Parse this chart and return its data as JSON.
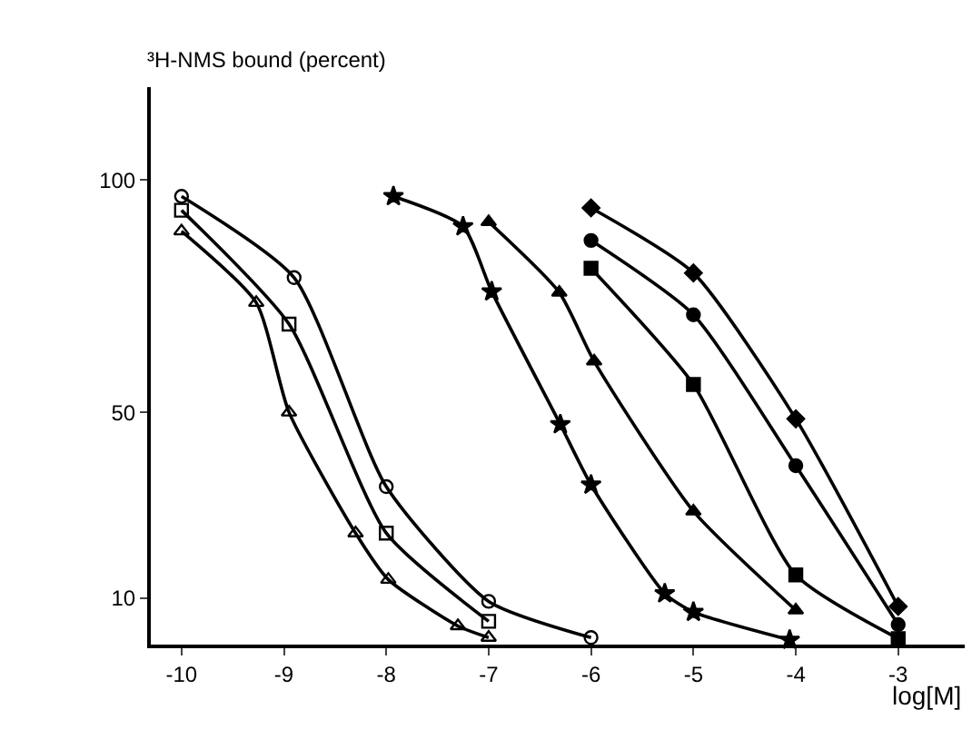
{
  "chart_data": {
    "type": "line",
    "ylabel": "³H-NMS bound (percent)",
    "xlabel": "log[M]",
    "xlim": [
      -10.3,
      -2.35
    ],
    "xticks": [
      -10,
      -9,
      -8,
      -7,
      -6,
      -5,
      -4,
      -3
    ],
    "ylim": [
      0,
      120
    ],
    "yticks": [
      10,
      50,
      100
    ],
    "grid": false,
    "line_style": "solid",
    "series": [
      {
        "marker": "circle-open",
        "color": "#000000",
        "x": [
          -10,
          -8.9,
          -8,
          -7,
          -6
        ],
        "values": [
          96.5,
          79,
          34,
          9.3,
          1.5
        ]
      },
      {
        "marker": "square-open",
        "color": "#000000",
        "x": [
          -10,
          -8.95,
          -8,
          -7
        ],
        "values": [
          93.5,
          69,
          24,
          5
        ]
      },
      {
        "marker": "triangle-open",
        "color": "#000000",
        "x": [
          -10,
          -9.27,
          -8.95,
          -8.3,
          -7.98,
          -7.3,
          -7
        ],
        "values": [
          89,
          73.6,
          50,
          24,
          14,
          4,
          1.5
        ]
      },
      {
        "marker": "star",
        "color": "#000000",
        "x": [
          -7.93,
          -7.25,
          -6.97,
          -6.3,
          -6,
          -5.28,
          -5,
          -4.06
        ],
        "values": [
          96.5,
          90,
          76,
          47.4,
          34.4,
          11,
          7,
          1
        ]
      },
      {
        "marker": "triangle",
        "color": "#000000",
        "x": [
          -7,
          -6.31,
          -5.97,
          -5,
          -4
        ],
        "values": [
          91,
          75.8,
          61,
          28.7,
          7.4
        ]
      },
      {
        "marker": "diamond",
        "color": "#000000",
        "x": [
          -6,
          -5,
          -4,
          -3
        ],
        "values": [
          94,
          80,
          48.6,
          8.2
        ]
      },
      {
        "marker": "circle",
        "color": "#000000",
        "x": [
          -6,
          -5,
          -4,
          -3
        ],
        "values": [
          87,
          71,
          38.5,
          4.3
        ]
      },
      {
        "marker": "square",
        "color": "#000000",
        "x": [
          -6,
          -5,
          -4,
          -3
        ],
        "values": [
          81,
          56,
          15,
          1.3
        ]
      }
    ]
  }
}
